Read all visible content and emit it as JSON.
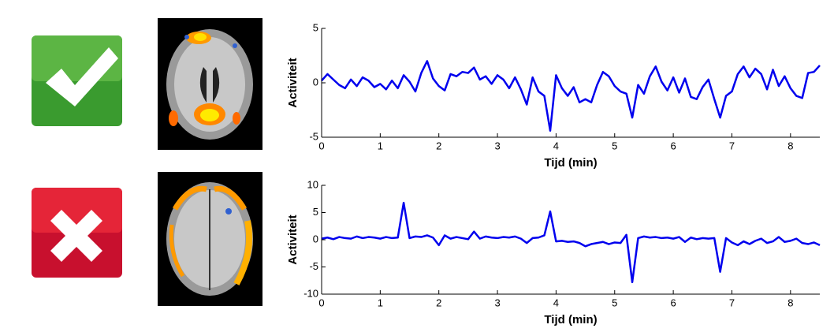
{
  "chart_data": [
    {
      "type": "line",
      "xlabel": "Tijd (min)",
      "ylabel": "Activiteit",
      "x": [
        0,
        0.1,
        0.2,
        0.3,
        0.4,
        0.5,
        0.6,
        0.7,
        0.8,
        0.9,
        1.0,
        1.1,
        1.2,
        1.3,
        1.4,
        1.5,
        1.6,
        1.7,
        1.8,
        1.9,
        2.0,
        2.1,
        2.2,
        2.3,
        2.4,
        2.5,
        2.6,
        2.7,
        2.8,
        2.9,
        3.0,
        3.1,
        3.2,
        3.3,
        3.4,
        3.5,
        3.6,
        3.7,
        3.8,
        3.9,
        4.0,
        4.1,
        4.2,
        4.3,
        4.4,
        4.5,
        4.6,
        4.7,
        4.8,
        4.9,
        5.0,
        5.1,
        5.2,
        5.3,
        5.4,
        5.5,
        5.6,
        5.7,
        5.8,
        5.9,
        6.0,
        6.1,
        6.2,
        6.3,
        6.4,
        6.5,
        6.6,
        6.7,
        6.8,
        6.9,
        7.0,
        7.1,
        7.2,
        7.3,
        7.4,
        7.5,
        7.6,
        7.7,
        7.8,
        7.9,
        8.0,
        8.1,
        8.2,
        8.3,
        8.4,
        8.5
      ],
      "series": [
        {
          "color": "#0000ee",
          "values": [
            0.2,
            0.8,
            0.3,
            -0.2,
            -0.5,
            0.3,
            -0.3,
            0.5,
            0.2,
            -0.4,
            -0.1,
            -0.6,
            0.2,
            -0.5,
            0.7,
            0.1,
            -0.8,
            0.9,
            2.0,
            0.4,
            -0.3,
            -0.7,
            0.8,
            0.6,
            1.0,
            0.9,
            1.4,
            0.3,
            0.6,
            -0.1,
            0.7,
            0.3,
            -0.5,
            0.5,
            -0.6,
            -2.0,
            0.5,
            -0.8,
            -1.2,
            -4.4,
            0.7,
            -0.5,
            -1.2,
            -0.4,
            -1.8,
            -1.5,
            -1.8,
            -0.2,
            1.0,
            0.6,
            -0.3,
            -0.8,
            -1.0,
            -3.2,
            -0.2,
            -1.0,
            0.6,
            1.5,
            0.1,
            -0.7,
            0.5,
            -0.9,
            0.4,
            -1.3,
            -1.5,
            -0.4,
            0.3,
            -1.5,
            -3.2,
            -1.2,
            -0.8,
            0.8,
            1.5,
            0.5,
            1.3,
            0.8,
            -0.6,
            1.2,
            -0.3,
            0.6,
            -0.5,
            -1.2,
            -1.4,
            0.9,
            1.0,
            1.6
          ]
        }
      ],
      "xlim": [
        0,
        8.5
      ],
      "ylim": [
        -5,
        5
      ],
      "xticks": [
        0,
        1,
        2,
        3,
        4,
        5,
        6,
        7,
        8
      ],
      "yticks": [
        -5,
        0,
        5
      ]
    },
    {
      "type": "line",
      "xlabel": "Tijd (min)",
      "ylabel": "Activiteit",
      "x": [
        0,
        0.1,
        0.2,
        0.3,
        0.4,
        0.5,
        0.6,
        0.7,
        0.8,
        0.9,
        1.0,
        1.1,
        1.2,
        1.3,
        1.4,
        1.5,
        1.6,
        1.7,
        1.8,
        1.9,
        2.0,
        2.1,
        2.2,
        2.3,
        2.4,
        2.5,
        2.6,
        2.7,
        2.8,
        2.9,
        3.0,
        3.1,
        3.2,
        3.3,
        3.4,
        3.5,
        3.6,
        3.7,
        3.8,
        3.9,
        4.0,
        4.1,
        4.2,
        4.3,
        4.4,
        4.5,
        4.6,
        4.7,
        4.8,
        4.9,
        5.0,
        5.1,
        5.2,
        5.3,
        5.4,
        5.5,
        5.6,
        5.7,
        5.8,
        5.9,
        6.0,
        6.1,
        6.2,
        6.3,
        6.4,
        6.5,
        6.6,
        6.7,
        6.8,
        6.9,
        7.0,
        7.1,
        7.2,
        7.3,
        7.4,
        7.5,
        7.6,
        7.7,
        7.8,
        7.9,
        8.0,
        8.1,
        8.2,
        8.3,
        8.4,
        8.5
      ],
      "series": [
        {
          "color": "#0000ee",
          "values": [
            0.2,
            0.4,
            0.1,
            0.5,
            0.3,
            0.2,
            0.6,
            0.3,
            0.5,
            0.4,
            0.2,
            0.5,
            0.3,
            0.4,
            6.8,
            0.3,
            0.6,
            0.5,
            0.8,
            0.4,
            -1.0,
            0.8,
            0.2,
            0.5,
            0.3,
            0.1,
            1.5,
            0.2,
            0.6,
            0.4,
            0.3,
            0.5,
            0.4,
            0.6,
            0.2,
            -0.6,
            0.3,
            0.4,
            0.8,
            5.2,
            -0.3,
            -0.2,
            -0.4,
            -0.3,
            -0.6,
            -1.2,
            -0.8,
            -0.6,
            -0.4,
            -0.8,
            -0.5,
            -0.6,
            0.9,
            -7.8,
            0.3,
            0.6,
            0.4,
            0.5,
            0.3,
            0.4,
            0.2,
            0.5,
            -0.4,
            0.4,
            0.1,
            0.3,
            0.2,
            0.3,
            -5.9,
            0.3,
            -0.5,
            -1.0,
            -0.3,
            -0.8,
            -0.2,
            0.2,
            -0.6,
            -0.3,
            0.5,
            -0.4,
            -0.2,
            0.2,
            -0.6,
            -0.8,
            -0.5,
            -1.0
          ]
        }
      ],
      "xlim": [
        0,
        8.5
      ],
      "ylim": [
        -10,
        10
      ],
      "xticks": [
        0,
        1,
        2,
        3,
        4,
        5,
        6,
        7,
        8
      ],
      "yticks": [
        -10,
        -5,
        0,
        5,
        10
      ]
    }
  ]
}
